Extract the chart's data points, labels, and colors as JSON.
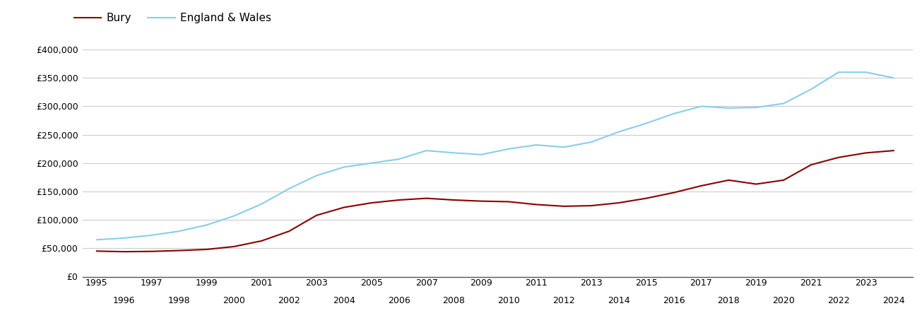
{
  "bury_years": [
    1995,
    1996,
    1997,
    1998,
    1999,
    2000,
    2001,
    2002,
    2003,
    2004,
    2005,
    2006,
    2007,
    2008,
    2009,
    2010,
    2011,
    2012,
    2013,
    2014,
    2015,
    2016,
    2017,
    2018,
    2019,
    2020,
    2021,
    2022,
    2023,
    2024
  ],
  "bury_values": [
    45000,
    44000,
    44500,
    46000,
    48000,
    53000,
    63000,
    80000,
    108000,
    122000,
    130000,
    135000,
    138000,
    135000,
    133000,
    132000,
    127000,
    124000,
    125000,
    130000,
    138000,
    148000,
    160000,
    170000,
    163000,
    170000,
    197000,
    210000,
    218000,
    222000
  ],
  "ew_years": [
    1995,
    1996,
    1997,
    1998,
    1999,
    2000,
    2001,
    2002,
    2003,
    2004,
    2005,
    2006,
    2007,
    2008,
    2009,
    2010,
    2011,
    2012,
    2013,
    2014,
    2015,
    2016,
    2017,
    2018,
    2019,
    2020,
    2021,
    2022,
    2023,
    2024
  ],
  "ew_values": [
    65000,
    68000,
    73000,
    80000,
    91000,
    107000,
    128000,
    155000,
    178000,
    193000,
    200000,
    207000,
    222000,
    218000,
    215000,
    225000,
    232000,
    228000,
    237000,
    255000,
    270000,
    287000,
    300000,
    297000,
    298000,
    305000,
    330000,
    360000,
    360000,
    350000
  ],
  "bury_color": "#8B0000",
  "ew_color": "#87CEEB",
  "bury_label": "Bury",
  "ew_label": "England & Wales",
  "ylim": [
    0,
    420000
  ],
  "yticks": [
    0,
    50000,
    100000,
    150000,
    200000,
    250000,
    300000,
    350000,
    400000
  ],
  "xlim": [
    1994.5,
    2024.7
  ],
  "xticks_top": [
    1995,
    1997,
    1999,
    2001,
    2003,
    2005,
    2007,
    2009,
    2011,
    2013,
    2015,
    2017,
    2019,
    2021,
    2023
  ],
  "xticks_bottom": [
    1996,
    1998,
    2000,
    2002,
    2004,
    2006,
    2008,
    2010,
    2012,
    2014,
    2016,
    2018,
    2020,
    2022,
    2024
  ],
  "background_color": "#ffffff",
  "grid_color": "#cccccc",
  "line_width": 1.5
}
